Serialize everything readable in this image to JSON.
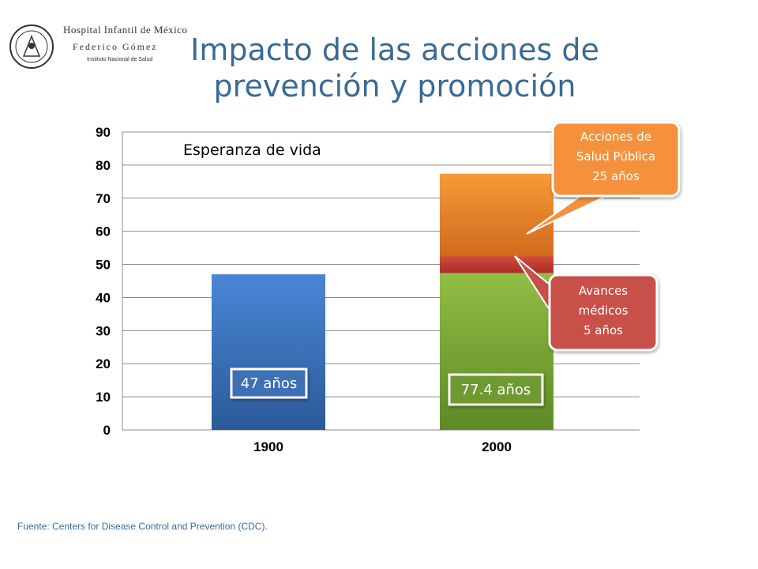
{
  "logo": {
    "line1": "Hospital Infantil de México",
    "line2": "Federico Gómez",
    "line3": "Instituto Nacional de Salud"
  },
  "slide": {
    "title_line1": "Impacto de las acciones de",
    "title_line2": "prevención y promoción",
    "source": "Fuente: Centers for Disease Control and Prevention (CDC)."
  },
  "colors": {
    "title": "#3a6a96",
    "bar_1900": "#3a78c9",
    "bar_2000_base": "#7faa3c",
    "bar_2000_medical": "#c43a32",
    "bar_2000_public_health": "#f08a2c",
    "callout_orange": "#f5913e",
    "callout_red": "#c9504a"
  },
  "chart_data": {
    "type": "bar",
    "stacked": true,
    "title": "Esperanza de vida",
    "categories": [
      "1900",
      "2000"
    ],
    "ylim": [
      0,
      90
    ],
    "yticks": [
      0,
      10,
      20,
      30,
      40,
      50,
      60,
      70,
      80,
      90
    ],
    "grid": true,
    "series": [
      {
        "values": [
          47,
          47.4
        ]
      },
      {
        "values": [
          0,
          5
        ]
      },
      {
        "values": [
          0,
          25
        ]
      }
    ],
    "data_labels": [
      "47 años",
      "77.4 años"
    ],
    "annotations": [
      {
        "text_lines": [
          "Acciones de",
          "Salud Pública",
          "25 años"
        ]
      },
      {
        "text_lines": [
          "Avances",
          "médicos",
          "5 años"
        ]
      }
    ]
  }
}
